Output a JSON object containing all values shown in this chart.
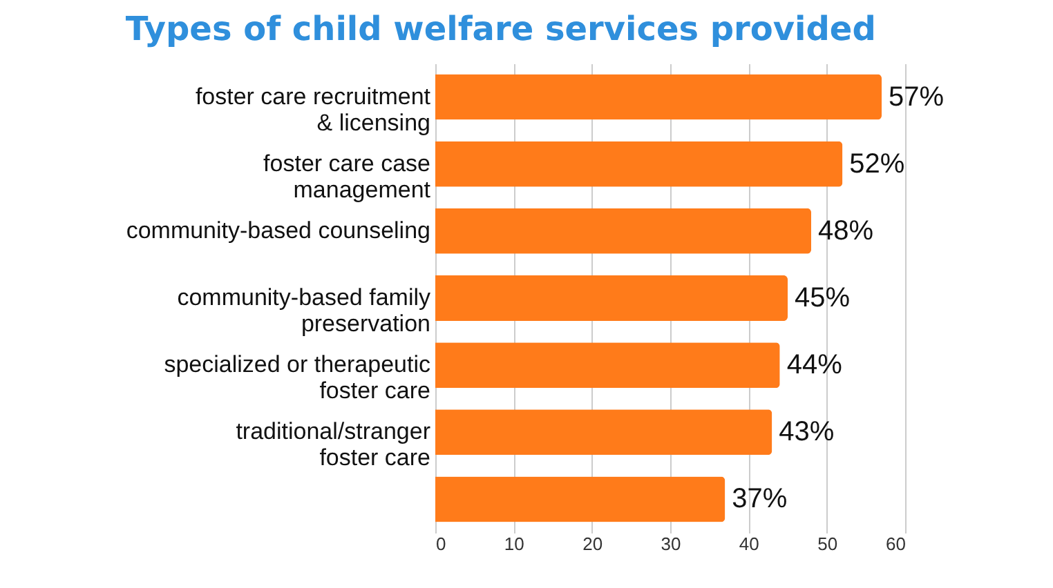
{
  "chart_data": {
    "type": "bar",
    "orientation": "horizontal",
    "title": "Types of child welfare services provided",
    "categories": [
      "foster care recruitment & licensing",
      "foster care case management",
      "community-based counseling",
      "community-based family preservation",
      "specialized or therapeutic foster care",
      "traditional/stranger foster care",
      null
    ],
    "values": [
      57,
      52,
      48,
      45,
      44,
      43,
      37
    ],
    "value_labels": [
      "57%",
      "52%",
      "48%",
      "45%",
      "44%",
      "43%",
      "37%"
    ],
    "color": "#ff7b1a",
    "xlim": [
      0,
      60
    ],
    "xticks": [
      0,
      10,
      20,
      30,
      40,
      50,
      60
    ],
    "grid": "x"
  }
}
